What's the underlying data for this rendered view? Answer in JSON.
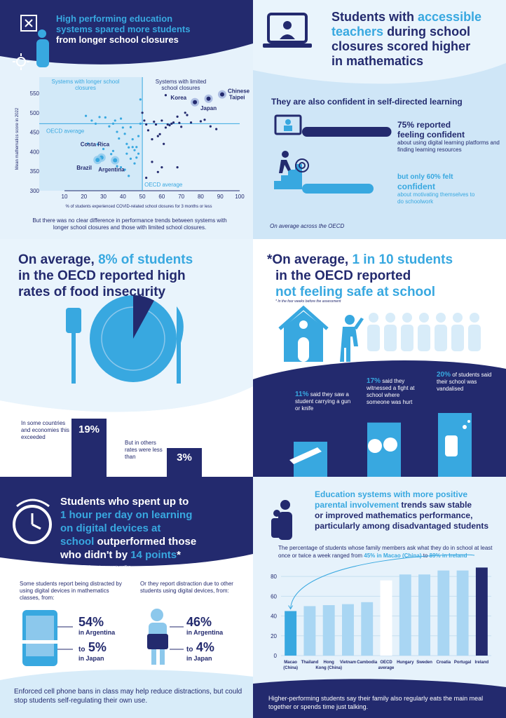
{
  "p1": {
    "title_a": "High performing education",
    "title_b": "systems spared more students",
    "title_c": "from longer school closures",
    "region_left": "Systems with longer school closures",
    "region_right": "Systems with limited school closures",
    "oecd_avg_h": "OECD average",
    "oecd_avg_v": "OECD average",
    "ylabel": "Mean mathematics score in 2022",
    "xlabel": "% of students experienced COVID-related school closures for 3 months or less",
    "note": "But there was no clear difference in performance trends between systems with longer school closures and those with limited school closures."
  },
  "chart_data": [
    {
      "type": "scatter",
      "xlabel": "% of students experienced COVID-related school closures for 3 months or less",
      "ylabel": "Mean mathematics score in 2022",
      "xlim": [
        10,
        100
      ],
      "ylim": [
        300,
        550
      ],
      "xticks": [
        10,
        20,
        30,
        40,
        50,
        60,
        70,
        80,
        90,
        100
      ],
      "yticks": [
        300,
        350,
        400,
        450,
        500,
        550
      ],
      "oecd_average": {
        "x": 50,
        "y": 472
      },
      "labelled": [
        {
          "name": "Korea",
          "x": 77,
          "y": 527
        },
        {
          "name": "Japan",
          "x": 84,
          "y": 536
        },
        {
          "name": "Chinese Taipei",
          "x": 91,
          "y": 547
        },
        {
          "name": "Costa Rica",
          "x": 29,
          "y": 385
        },
        {
          "name": "Brazil",
          "x": 27,
          "y": 379
        },
        {
          "name": "Argentina",
          "x": 36,
          "y": 378
        }
      ],
      "points_left": [
        [
          21,
          492
        ],
        [
          24,
          480
        ],
        [
          26,
          472
        ],
        [
          28,
          489
        ],
        [
          31,
          488
        ],
        [
          33,
          465
        ],
        [
          35,
          472
        ],
        [
          36,
          480
        ],
        [
          37,
          451
        ],
        [
          38,
          434
        ],
        [
          39,
          485
        ],
        [
          40,
          462
        ],
        [
          41,
          446
        ],
        [
          42,
          420
        ],
        [
          43,
          411
        ],
        [
          44,
          463
        ],
        [
          45,
          432
        ],
        [
          46,
          404
        ],
        [
          47,
          385
        ],
        [
          48,
          440
        ],
        [
          49,
          472
        ],
        [
          37,
          363
        ],
        [
          39,
          360
        ],
        [
          41,
          354
        ],
        [
          43,
          338
        ],
        [
          44,
          382
        ],
        [
          46,
          370
        ],
        [
          48,
          395
        ],
        [
          49,
          534
        ],
        [
          22,
          421
        ],
        [
          27,
          419
        ],
        [
          30,
          407
        ],
        [
          34,
          394
        ],
        [
          35,
          402
        ],
        [
          42,
          395
        ],
        [
          45,
          412
        ],
        [
          47,
          412
        ]
      ],
      "points_right": [
        [
          51,
          480
        ],
        [
          52,
          470
        ],
        [
          53,
          455
        ],
        [
          55,
          432
        ],
        [
          56,
          477
        ],
        [
          57,
          470
        ],
        [
          58,
          440
        ],
        [
          59,
          445
        ],
        [
          60,
          480
        ],
        [
          61,
          420
        ],
        [
          62,
          462
        ],
        [
          63,
          470
        ],
        [
          64,
          468
        ],
        [
          65,
          472
        ],
        [
          66,
          475
        ],
        [
          68,
          490
        ],
        [
          69,
          474
        ],
        [
          70,
          464
        ],
        [
          72,
          500
        ],
        [
          73,
          494
        ],
        [
          75,
          475
        ],
        [
          80,
          478
        ],
        [
          82,
          482
        ],
        [
          85,
          465
        ],
        [
          88,
          458
        ],
        [
          55,
          374
        ],
        [
          58,
          348
        ],
        [
          60,
          360
        ],
        [
          68,
          360
        ],
        [
          52,
          333
        ],
        [
          50,
          500
        ],
        [
          62,
          545
        ]
      ]
    },
    {
      "type": "bar",
      "ylim": [
        0,
        90
      ],
      "yticks": [
        0,
        20,
        40,
        60,
        80
      ],
      "categories": [
        "Macao (China)",
        "Thailand",
        "Hong Kong (China)",
        "Vietnam",
        "Cambodia",
        "OECD average",
        "Hungary",
        "Sweden",
        "Croatia",
        "Portugal",
        "Ireland"
      ],
      "values": [
        45,
        50,
        51,
        52,
        54,
        76,
        82,
        82,
        86,
        86,
        89
      ]
    }
  ],
  "p2": {
    "title_a": "Students with ",
    "title_hl_a": "accessible",
    "title_hl_b": "teachers",
    "title_b": " during school",
    "title_c": "closures scored higher",
    "title_d": "in mathematics",
    "sub": "They are also confident in self-directed learning",
    "stat1_pct": "75% reported",
    "stat1_big": "feeling confident",
    "stat1_desc": "about using digital learning platforms and finding learning resources",
    "stat2_pct_a": "but only ",
    "stat2_pct_b": "60% felt",
    "stat2_big": "confident",
    "stat2_desc": "about motivating themselves to do schoolwork",
    "foot": "On average across the OECD",
    "bar1": 75,
    "bar2": 60
  },
  "p3": {
    "title_a": "On average, ",
    "title_hl": "8% of students",
    "title_b": "in the OECD reported high",
    "title_c": "rates of food insecurity",
    "pie_value": 8,
    "left_text": "In some countries and economies this exceeded",
    "left_val": "19%",
    "left_bar": 19,
    "right_text": "But in others rates were less than",
    "right_val": "3%",
    "right_bar": 3
  },
  "p4": {
    "title_a": "*On average, ",
    "title_hl": "1 in 10 students",
    "title_b": "in the OECD reported",
    "title_c": "not feeling safe at school",
    "footnote": "* In the four weeks before the assessment",
    "s1_pct": "11%",
    "s1_txt": "said they saw a student carrying a gun or knife",
    "s1_bar": 11,
    "s2_pct": "17%",
    "s2_txt": "said they witnessed a fight at school where someone was hurt",
    "s2_bar": 17,
    "s3_pct": "20%",
    "s3_txt_a": "of",
    "s3_txt": "students said their school was vandalised",
    "s3_bar": 20
  },
  "p5": {
    "title_a": "Students who spent up to",
    "title_hl_a": "1 hour per day on learning",
    "title_hl_b": "on digital devices at",
    "title_hl_c": "school",
    "title_b": " outperformed those",
    "title_c": "who didn't by ",
    "title_hl_d": "14 points",
    "title_d": "*",
    "footnote": "* After accounting for socio-economic profiles",
    "left_intro": "Some students report being distracted by using digital devices in mathematics classes, from:",
    "left_v1": "54%",
    "left_c1": "in Argentina",
    "left_to": "to",
    "left_v2": "5%",
    "left_c2": "in Japan",
    "right_intro": "Or they report distraction due to other students using digital devices, from:",
    "right_v1": "46%",
    "right_c1": "in Argentina",
    "right_to": "to",
    "right_v2": "4%",
    "right_c2": "in Japan",
    "bottom": "Enforced cell phone bans in class may help reduce distractions, but could stop students self-regulating their own use."
  },
  "p6": {
    "title_hl_a": "Education systems with more positive",
    "title_hl_b": "parental involvement",
    "title_a": " trends saw stable",
    "title_b": "or improved mathematics performance,",
    "title_c": "particularly among disadvantaged students",
    "desc_a": "The percentage of students whose family members ask what they do in school at least once or twice a week ranged from ",
    "desc_hl_a": "45% in Macao (China)",
    "desc_b": " to ",
    "desc_hl_b": "89% in Ireland",
    "bottom": "Higher-performing students say their family also regularly eats the main meal together or spends time just talking."
  },
  "colors": {
    "navy": "#232a6e",
    "cyan": "#38a8e0",
    "light": "#cfe6f7",
    "bar": "#a9d6f3"
  }
}
